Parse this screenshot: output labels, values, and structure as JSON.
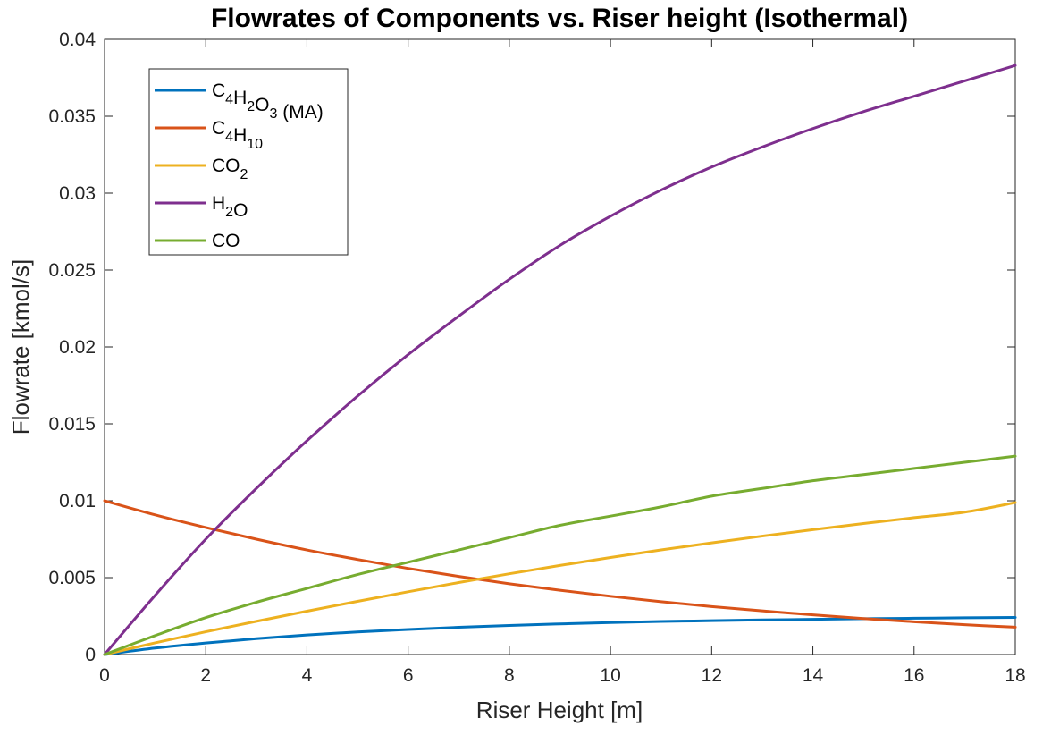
{
  "chart_data": {
    "type": "line",
    "title": "Flowrates of Components vs. Riser height (Isothermal)",
    "xlabel": "Riser Height [m]",
    "ylabel": "Flowrate [kmol/s]",
    "xlim": [
      0,
      18
    ],
    "ylim": [
      0,
      0.04
    ],
    "x_ticks": [
      0,
      2,
      4,
      6,
      8,
      10,
      12,
      14,
      16,
      18
    ],
    "x_tick_labels": [
      "0",
      "2",
      "4",
      "6",
      "8",
      "10",
      "12",
      "14",
      "16",
      "18"
    ],
    "y_ticks": [
      0,
      0.005,
      0.01,
      0.015,
      0.02,
      0.025,
      0.03,
      0.035,
      0.04
    ],
    "y_tick_labels": [
      "0",
      "0.005",
      "0.01",
      "0.015",
      "0.02",
      "0.025",
      "0.03",
      "0.035",
      "0.04"
    ],
    "grid": false,
    "legend_position": "top-left",
    "x": [
      0,
      1,
      2,
      3,
      4,
      5,
      6,
      7,
      8,
      9,
      10,
      11,
      12,
      13,
      14,
      15,
      16,
      17,
      18
    ],
    "series": [
      {
        "name": "C4H2O3 (MA)",
        "legend_parts": [
          [
            "C",
            ""
          ],
          [
            "4",
            "sub"
          ],
          [
            "H",
            ""
          ],
          [
            "2",
            "sub"
          ],
          [
            "O",
            ""
          ],
          [
            "3",
            "sub"
          ],
          [
            " (MA)",
            ""
          ]
        ],
        "color": "#0072BD",
        "values": [
          0,
          0.00042,
          0.00075,
          0.00103,
          0.00127,
          0.00147,
          0.00163,
          0.00177,
          0.00189,
          0.00199,
          0.00208,
          0.00215,
          0.0022,
          0.00225,
          0.00229,
          0.00233,
          0.00236,
          0.00239,
          0.00241
        ]
      },
      {
        "name": "C4H10",
        "legend_parts": [
          [
            "C",
            ""
          ],
          [
            "4",
            "sub"
          ],
          [
            "H",
            ""
          ],
          [
            "10",
            "sub"
          ]
        ],
        "color": "#D95319",
        "values": [
          0.01,
          0.00908,
          0.00826,
          0.0075,
          0.0068,
          0.00618,
          0.0056,
          0.00508,
          0.0046,
          0.00418,
          0.00379,
          0.00344,
          0.00312,
          0.00284,
          0.00258,
          0.00234,
          0.00213,
          0.00194,
          0.00178
        ]
      },
      {
        "name": "CO2",
        "legend_parts": [
          [
            "CO",
            ""
          ],
          [
            "2",
            "sub"
          ]
        ],
        "color": "#EDB120",
        "values": [
          0,
          0.00076,
          0.00148,
          0.00216,
          0.00282,
          0.00346,
          0.00408,
          0.00468,
          0.00525,
          0.00579,
          0.00631,
          0.0068,
          0.00726,
          0.0077,
          0.00812,
          0.00852,
          0.0089,
          0.00926,
          0.00988
        ]
      },
      {
        "name": "H2O",
        "legend_parts": [
          [
            "H",
            ""
          ],
          [
            "2",
            "sub"
          ],
          [
            "O",
            ""
          ]
        ],
        "color": "#7E2F8E",
        "values": [
          0,
          0.00385,
          0.0075,
          0.0108,
          0.0139,
          0.0168,
          0.0195,
          0.022,
          0.0244,
          0.0266,
          0.0285,
          0.0302,
          0.0317,
          0.033,
          0.0342,
          0.0353,
          0.0363,
          0.0373,
          0.0383
        ]
      },
      {
        "name": "CO",
        "legend_parts": [
          [
            "CO",
            ""
          ]
        ],
        "color": "#77AC30",
        "values": [
          0,
          0.00123,
          0.0024,
          0.0034,
          0.0043,
          0.0052,
          0.006,
          0.0068,
          0.0076,
          0.0084,
          0.009,
          0.0096,
          0.0103,
          0.0108,
          0.0113,
          0.0117,
          0.0121,
          0.0125,
          0.0129
        ]
      }
    ]
  }
}
